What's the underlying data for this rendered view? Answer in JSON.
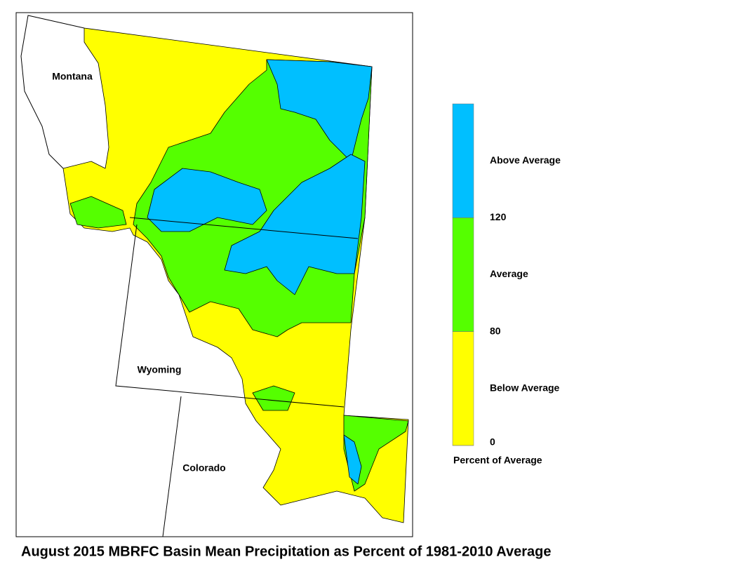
{
  "map": {
    "title": "August 2015 MBRFC Basin Mean Precipitation as Percent of 1981-2010 Average",
    "states": [
      "Montana",
      "Wyoming",
      "Colorado"
    ],
    "legend": {
      "title": "Percent of Average",
      "breaks": [
        0,
        80,
        120
      ],
      "classes": [
        {
          "label": "Below Average",
          "color": "#ffff00"
        },
        {
          "label": "Average",
          "color": "#55ff00"
        },
        {
          "label": "Above Average",
          "color": "#00bfff"
        }
      ]
    }
  }
}
